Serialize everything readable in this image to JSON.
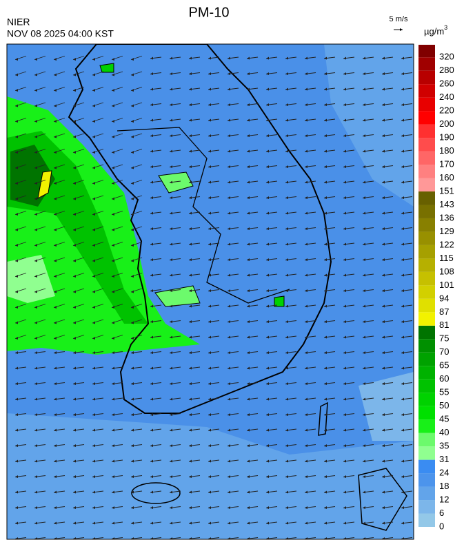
{
  "header": {
    "title": "PM-10",
    "agency": "NIER",
    "timestamp": "NOV 08 2025 04:00 KST",
    "wind_scale": "5 m/s"
  },
  "colorbar": {
    "unit": "µg/m",
    "unit_sup": "3",
    "ticks": [
      0,
      6,
      12,
      18,
      24,
      31,
      35,
      40,
      45,
      50,
      55,
      60,
      65,
      70,
      75,
      81,
      87,
      94,
      101,
      108,
      115,
      122,
      129,
      136,
      143,
      151,
      160,
      170,
      180,
      190,
      200,
      220,
      240,
      260,
      280,
      320
    ],
    "colors": [
      "#93c8e8",
      "#7cb6ea",
      "#62a4ea",
      "#4c94ec",
      "#3a8cf2",
      "#90ff90",
      "#6cfa6c",
      "#18f018",
      "#00e000",
      "#00d200",
      "#00c200",
      "#00b200",
      "#00a200",
      "#009000",
      "#007400",
      "#f2f200",
      "#e0e000",
      "#d2d000",
      "#c6c000",
      "#b6b000",
      "#a6a000",
      "#989000",
      "#888000",
      "#787000",
      "#686000",
      "#ff9898",
      "#ff8080",
      "#ff6666",
      "#ff4c4c",
      "#ff3030",
      "#ff0000",
      "#e80000",
      "#d00000",
      "#b80000",
      "#a00000",
      "#800000"
    ]
  }
}
